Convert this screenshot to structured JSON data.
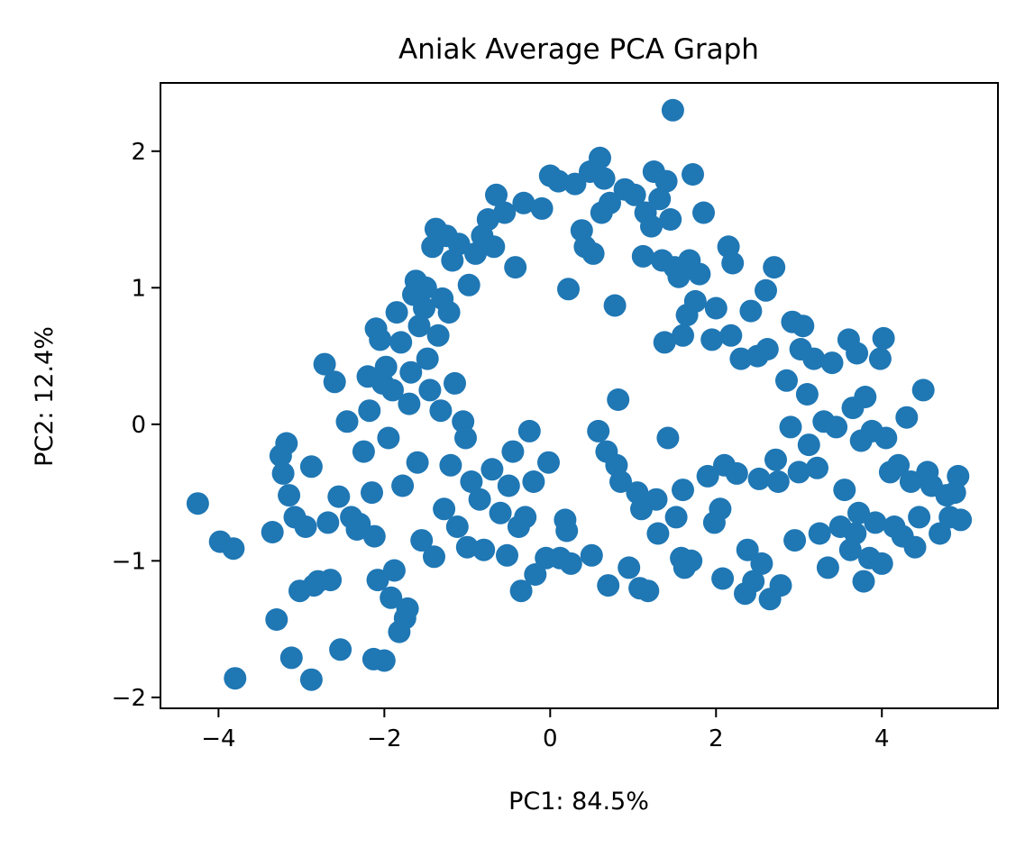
{
  "chart_data": {
    "type": "scatter",
    "title": "Aniak Average PCA Graph",
    "xlabel": "PC1: 84.5%",
    "ylabel": "PC2: 12.4%",
    "xlim": [
      -4.7,
      5.4
    ],
    "ylim": [
      -2.08,
      2.5
    ],
    "xticks": [
      -4,
      -2,
      0,
      2,
      4
    ],
    "yticks": [
      -2,
      -1,
      0,
      1,
      2
    ],
    "xtick_labels": [
      "−4",
      "−2",
      "0",
      "2",
      "4"
    ],
    "ytick_labels": [
      "−2",
      "−1",
      "0",
      "1",
      "2"
    ],
    "grid": false,
    "color": "#1f77b4",
    "series": [
      {
        "points": [
          [
            -4.25,
            -0.58
          ],
          [
            -3.98,
            -0.86
          ],
          [
            -3.82,
            -0.91
          ],
          [
            -3.8,
            -1.86
          ],
          [
            -3.35,
            -0.79
          ],
          [
            -3.3,
            -1.43
          ],
          [
            -3.25,
            -0.23
          ],
          [
            -3.22,
            -0.36
          ],
          [
            -3.18,
            -0.14
          ],
          [
            -3.15,
            -0.52
          ],
          [
            -3.12,
            -1.71
          ],
          [
            -3.08,
            -0.68
          ],
          [
            -3.02,
            -1.22
          ],
          [
            -2.95,
            -0.75
          ],
          [
            -2.88,
            -0.31
          ],
          [
            -2.88,
            -1.87
          ],
          [
            -2.85,
            -1.18
          ],
          [
            -2.8,
            -1.15
          ],
          [
            -2.72,
            0.44
          ],
          [
            -2.68,
            -0.72
          ],
          [
            -2.65,
            -1.14
          ],
          [
            -2.6,
            0.31
          ],
          [
            -2.55,
            -0.53
          ],
          [
            -2.53,
            -1.65
          ],
          [
            -2.45,
            0.02
          ],
          [
            -2.4,
            -0.68
          ],
          [
            -2.33,
            -0.77
          ],
          [
            -2.3,
            -0.73
          ],
          [
            -2.25,
            -0.2
          ],
          [
            -2.2,
            0.35
          ],
          [
            -2.18,
            0.1
          ],
          [
            -2.15,
            -0.5
          ],
          [
            -2.13,
            -1.72
          ],
          [
            -2.12,
            -0.82
          ],
          [
            -2.1,
            0.7
          ],
          [
            -2.08,
            -1.14
          ],
          [
            -2.05,
            0.62
          ],
          [
            -2.02,
            0.3
          ],
          [
            -2.0,
            -1.73
          ],
          [
            -1.98,
            0.42
          ],
          [
            -1.95,
            -0.1
          ],
          [
            -1.92,
            -1.27
          ],
          [
            -1.9,
            0.25
          ],
          [
            -1.88,
            -1.07
          ],
          [
            -1.85,
            0.82
          ],
          [
            -1.82,
            -1.52
          ],
          [
            -1.8,
            0.6
          ],
          [
            -1.78,
            -0.45
          ],
          [
            -1.75,
            -1.42
          ],
          [
            -1.72,
            -1.35
          ],
          [
            -1.7,
            0.15
          ],
          [
            -1.68,
            0.38
          ],
          [
            -1.65,
            0.95
          ],
          [
            -1.62,
            1.05
          ],
          [
            -1.6,
            -0.28
          ],
          [
            -1.58,
            0.72
          ],
          [
            -1.55,
            -0.85
          ],
          [
            -1.52,
            0.85
          ],
          [
            -1.5,
            1.0
          ],
          [
            -1.48,
            0.48
          ],
          [
            -1.45,
            0.25
          ],
          [
            -1.42,
            1.3
          ],
          [
            -1.4,
            -0.97
          ],
          [
            -1.38,
            1.43
          ],
          [
            -1.35,
            0.65
          ],
          [
            -1.32,
            0.1
          ],
          [
            -1.3,
            0.92
          ],
          [
            -1.28,
            -0.62
          ],
          [
            -1.25,
            1.38
          ],
          [
            -1.22,
            0.82
          ],
          [
            -1.2,
            -0.3
          ],
          [
            -1.18,
            1.2
          ],
          [
            -1.15,
            0.3
          ],
          [
            -1.12,
            -0.75
          ],
          [
            -1.1,
            1.32
          ],
          [
            -1.05,
            0.02
          ],
          [
            -1.02,
            -0.1
          ],
          [
            -1.0,
            -0.9
          ],
          [
            -0.98,
            1.02
          ],
          [
            -0.95,
            -0.42
          ],
          [
            -0.9,
            1.25
          ],
          [
            -0.85,
            -0.55
          ],
          [
            -0.82,
            1.38
          ],
          [
            -0.8,
            -0.92
          ],
          [
            -0.75,
            1.5
          ],
          [
            -0.7,
            -0.33
          ],
          [
            -0.68,
            1.3
          ],
          [
            -0.65,
            1.68
          ],
          [
            -0.6,
            -0.65
          ],
          [
            -0.55,
            1.55
          ],
          [
            -0.52,
            -0.96
          ],
          [
            -0.5,
            -0.45
          ],
          [
            -0.45,
            -0.2
          ],
          [
            -0.42,
            1.15
          ],
          [
            -0.38,
            -0.75
          ],
          [
            -0.35,
            -1.22
          ],
          [
            -0.32,
            1.62
          ],
          [
            -0.3,
            -0.68
          ],
          [
            -0.25,
            -0.05
          ],
          [
            -0.2,
            -0.42
          ],
          [
            -0.18,
            -1.1
          ],
          [
            -0.1,
            1.58
          ],
          [
            -0.05,
            -0.98
          ],
          [
            -0.02,
            -0.28
          ],
          [
            0.0,
            1.82
          ],
          [
            0.1,
            1.78
          ],
          [
            0.12,
            -0.98
          ],
          [
            0.18,
            -0.7
          ],
          [
            0.2,
            -0.78
          ],
          [
            0.22,
            0.99
          ],
          [
            0.25,
            -1.02
          ],
          [
            0.3,
            1.76
          ],
          [
            0.38,
            1.42
          ],
          [
            0.42,
            1.3
          ],
          [
            0.48,
            1.85
          ],
          [
            0.5,
            -0.96
          ],
          [
            0.52,
            1.25
          ],
          [
            0.58,
            -0.05
          ],
          [
            0.6,
            1.95
          ],
          [
            0.62,
            1.55
          ],
          [
            0.65,
            1.8
          ],
          [
            0.68,
            -0.2
          ],
          [
            0.7,
            -1.18
          ],
          [
            0.72,
            1.62
          ],
          [
            0.78,
            0.87
          ],
          [
            0.8,
            -0.3
          ],
          [
            0.82,
            0.18
          ],
          [
            0.85,
            -0.42
          ],
          [
            0.9,
            1.72
          ],
          [
            0.95,
            -1.05
          ],
          [
            1.02,
            1.68
          ],
          [
            1.05,
            -0.5
          ],
          [
            1.08,
            -1.2
          ],
          [
            1.1,
            -0.62
          ],
          [
            1.12,
            1.23
          ],
          [
            1.15,
            1.55
          ],
          [
            1.18,
            -1.22
          ],
          [
            1.22,
            1.45
          ],
          [
            1.25,
            1.85
          ],
          [
            1.28,
            -0.55
          ],
          [
            1.3,
            -0.8
          ],
          [
            1.32,
            1.65
          ],
          [
            1.35,
            1.2
          ],
          [
            1.38,
            0.6
          ],
          [
            1.4,
            1.78
          ],
          [
            1.42,
            -0.1
          ],
          [
            1.45,
            1.5
          ],
          [
            1.48,
            2.3
          ],
          [
            1.5,
            1.15
          ],
          [
            1.52,
            -0.68
          ],
          [
            1.55,
            1.08
          ],
          [
            1.58,
            -0.98
          ],
          [
            1.6,
            -0.48
          ],
          [
            1.6,
            0.65
          ],
          [
            1.62,
            -1.05
          ],
          [
            1.65,
            0.8
          ],
          [
            1.68,
            1.2
          ],
          [
            1.7,
            -1.0
          ],
          [
            1.72,
            1.83
          ],
          [
            1.75,
            0.9
          ],
          [
            1.8,
            1.1
          ],
          [
            1.85,
            1.55
          ],
          [
            1.9,
            -0.38
          ],
          [
            1.95,
            0.62
          ],
          [
            1.98,
            -0.72
          ],
          [
            2.0,
            0.85
          ],
          [
            2.05,
            -0.62
          ],
          [
            2.08,
            -1.13
          ],
          [
            2.1,
            -0.3
          ],
          [
            2.15,
            1.3
          ],
          [
            2.18,
            0.65
          ],
          [
            2.2,
            1.18
          ],
          [
            2.25,
            -0.36
          ],
          [
            2.3,
            0.48
          ],
          [
            2.35,
            -1.24
          ],
          [
            2.38,
            -0.92
          ],
          [
            2.42,
            0.83
          ],
          [
            2.45,
            -1.15
          ],
          [
            2.5,
            0.5
          ],
          [
            2.52,
            -0.4
          ],
          [
            2.55,
            -1.02
          ],
          [
            2.6,
            0.98
          ],
          [
            2.62,
            0.55
          ],
          [
            2.65,
            -1.28
          ],
          [
            2.7,
            1.15
          ],
          [
            2.72,
            -0.26
          ],
          [
            2.75,
            -0.42
          ],
          [
            2.78,
            -1.18
          ],
          [
            2.85,
            0.32
          ],
          [
            2.9,
            -0.02
          ],
          [
            2.92,
            0.75
          ],
          [
            2.95,
            -0.85
          ],
          [
            3.0,
            -0.35
          ],
          [
            3.02,
            0.55
          ],
          [
            3.05,
            0.72
          ],
          [
            3.1,
            0.22
          ],
          [
            3.12,
            -0.15
          ],
          [
            3.18,
            0.48
          ],
          [
            3.22,
            -0.32
          ],
          [
            3.25,
            -0.8
          ],
          [
            3.3,
            0.02
          ],
          [
            3.35,
            -1.05
          ],
          [
            3.4,
            0.45
          ],
          [
            3.45,
            -0.02
          ],
          [
            3.5,
            -0.75
          ],
          [
            3.55,
            -0.48
          ],
          [
            3.6,
            0.62
          ],
          [
            3.62,
            -0.92
          ],
          [
            3.65,
            0.12
          ],
          [
            3.68,
            -0.8
          ],
          [
            3.7,
            0.52
          ],
          [
            3.72,
            -0.65
          ],
          [
            3.75,
            -0.12
          ],
          [
            3.78,
            -1.15
          ],
          [
            3.8,
            0.2
          ],
          [
            3.85,
            -0.98
          ],
          [
            3.88,
            -0.05
          ],
          [
            3.92,
            -0.72
          ],
          [
            3.98,
            0.48
          ],
          [
            4.0,
            -1.02
          ],
          [
            4.02,
            0.63
          ],
          [
            4.05,
            -0.1
          ],
          [
            4.1,
            -0.35
          ],
          [
            4.15,
            -0.75
          ],
          [
            4.2,
            -0.3
          ],
          [
            4.25,
            -0.82
          ],
          [
            4.3,
            0.05
          ],
          [
            4.35,
            -0.42
          ],
          [
            4.4,
            -0.9
          ],
          [
            4.45,
            -0.68
          ],
          [
            4.5,
            0.25
          ],
          [
            4.55,
            -0.35
          ],
          [
            4.6,
            -0.45
          ],
          [
            4.7,
            -0.8
          ],
          [
            4.78,
            -0.52
          ],
          [
            4.82,
            -0.68
          ],
          [
            4.88,
            -0.5
          ],
          [
            4.92,
            -0.38
          ],
          [
            4.95,
            -0.7
          ]
        ]
      }
    ]
  }
}
